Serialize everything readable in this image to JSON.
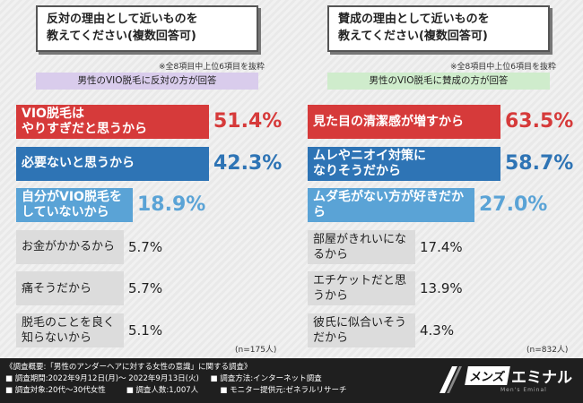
{
  "left": {
    "title_line1": "反対の理由として近いものを",
    "title_line2": "教えてください(複数回答可)",
    "note": "※全8項目中上位6項目を抜粋",
    "sub_label": "男性のVIO脱毛に反対の方が回答",
    "n": "(n=175人)"
  },
  "right": {
    "title_line1": "賛成の理由として近いものを",
    "title_line2": "教えてください(複数回答可)",
    "note": "※全8項目中上位6項目を抜粋",
    "sub_label": "男性のVIO脱毛に賛成の方が回答",
    "n": "(n=832人)"
  },
  "chart_data": [
    {
      "type": "bar",
      "orientation": "horizontal",
      "title": "反対の理由として近いものを教えてください(複数回答可)",
      "categories": [
        "VIO脱毛はやりすぎだと思うから",
        "必要ないと思うから",
        "自分がVIO脱毛をしていないから",
        "お金がかかるから",
        "痛そうだから",
        "脱毛のことを良く知らないから"
      ],
      "labels": [
        [
          "VIO脱毛は",
          "やりすぎだと思うから"
        ],
        [
          "必要ないと思うから"
        ],
        [
          "自分がVIO脱毛を",
          "していないから"
        ],
        [
          "お金がかかるから"
        ],
        [
          "痛そうだから"
        ],
        [
          "脱毛のことを良く知らないから"
        ]
      ],
      "values": [
        51.4,
        42.3,
        18.9,
        5.7,
        5.7,
        5.1
      ],
      "value_labels": [
        "51.4%",
        "42.3%",
        "18.9%",
        "5.7%",
        "5.7%",
        "5.1%"
      ],
      "colors": [
        "#d63a3a",
        "#2e74b5",
        "#5aa3d6",
        "#dcdcdc",
        "#dcdcdc",
        "#dcdcdc"
      ]
    },
    {
      "type": "bar",
      "orientation": "horizontal",
      "title": "賛成の理由として近いものを教えてください(複数回答可)",
      "categories": [
        "見た目の清潔感が増すから",
        "ムレやニオイ対策になりそうだから",
        "ムダ毛がない方が好きだから",
        "部屋がきれいになるから",
        "エチケットだと思うから",
        "彼氏に似合いそうだから"
      ],
      "labels": [
        [
          "見た目の清潔感が増すから"
        ],
        [
          "ムレやニオイ対策に",
          "なりそうだから"
        ],
        [
          "ムダ毛がない方が好きだから"
        ],
        [
          "部屋がきれいになるから"
        ],
        [
          "エチケットだと思うから"
        ],
        [
          "彼氏に似合いそうだから"
        ]
      ],
      "values": [
        63.5,
        58.7,
        27.0,
        17.4,
        13.9,
        4.3
      ],
      "value_labels": [
        "63.5%",
        "58.7%",
        "27.0%",
        "17.4%",
        "13.9%",
        "4.3%"
      ],
      "colors": [
        "#d63a3a",
        "#2e74b5",
        "#5aa3d6",
        "#dcdcdc",
        "#dcdcdc",
        "#dcdcdc"
      ]
    }
  ],
  "footer": {
    "line1": "《調査概要:「男性のアンダーヘアに対する女性の意識」に関する調査》",
    "period_label": "■ 調査期間:2022年9月12日(月)〜 2022年9月13日(火)",
    "method": "■ 調査方法:インターネット調査",
    "target": "■ 調査対象:20代〜30代女性",
    "count": "■ 調査人数:1,007人",
    "provider": "■ モニター提供元:ゼネラルリサーチ"
  },
  "logo": {
    "men": "メンズ",
    "emi": "エミナル",
    "sub": "Men's Eminal"
  }
}
